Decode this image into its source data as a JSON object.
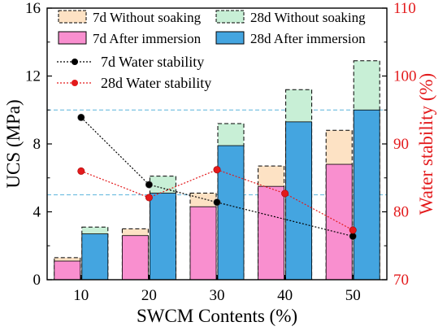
{
  "chart_data": {
    "type": "bar",
    "categories": [
      "10",
      "20",
      "30",
      "40",
      "50"
    ],
    "xlabel": "SWCM Contents (%)",
    "ylabel": "UCS (MPa)",
    "ylabel_right": "Water stability (%)",
    "ylim": [
      0,
      16
    ],
    "ylim_right": [
      70,
      110
    ],
    "yticks": [
      "0",
      "4",
      "8",
      "12",
      "16"
    ],
    "yticks_right": [
      "70",
      "80",
      "90",
      "100",
      "110"
    ],
    "reference_lines_ucs": [
      5,
      10
    ],
    "bar_series": [
      {
        "name": "7d Without soaking",
        "values": [
          1.3,
          3.0,
          5.1,
          6.7,
          8.8
        ],
        "color": "#fde2c4",
        "edge": "#000000",
        "dashed": true
      },
      {
        "name": "7d  After  immersion",
        "values": [
          1.1,
          2.6,
          4.3,
          5.5,
          6.8
        ],
        "color": "#f98fcf",
        "edge": "#000000",
        "dashed": false
      },
      {
        "name": "28d Without soaking",
        "values": [
          3.1,
          6.1,
          9.2,
          11.2,
          12.9
        ],
        "color": "#c8efd6",
        "edge": "#000000",
        "dashed": true
      },
      {
        "name": "28d  After  immersion",
        "values": [
          2.7,
          5.1,
          7.9,
          9.3,
          10.0
        ],
        "color": "#44a5e0",
        "edge": "#000000",
        "dashed": false
      }
    ],
    "line_series": [
      {
        "name": "7d Water stability",
        "axis": "right",
        "values": [
          93.9,
          84.0,
          81.4,
          null,
          76.4
        ],
        "color": "#000000"
      },
      {
        "name": "28d Water stability",
        "axis": "right",
        "values": [
          86.0,
          82.1,
          86.2,
          82.7,
          77.3
        ],
        "color": "#e31a1c"
      }
    ],
    "legend_position": "top"
  }
}
